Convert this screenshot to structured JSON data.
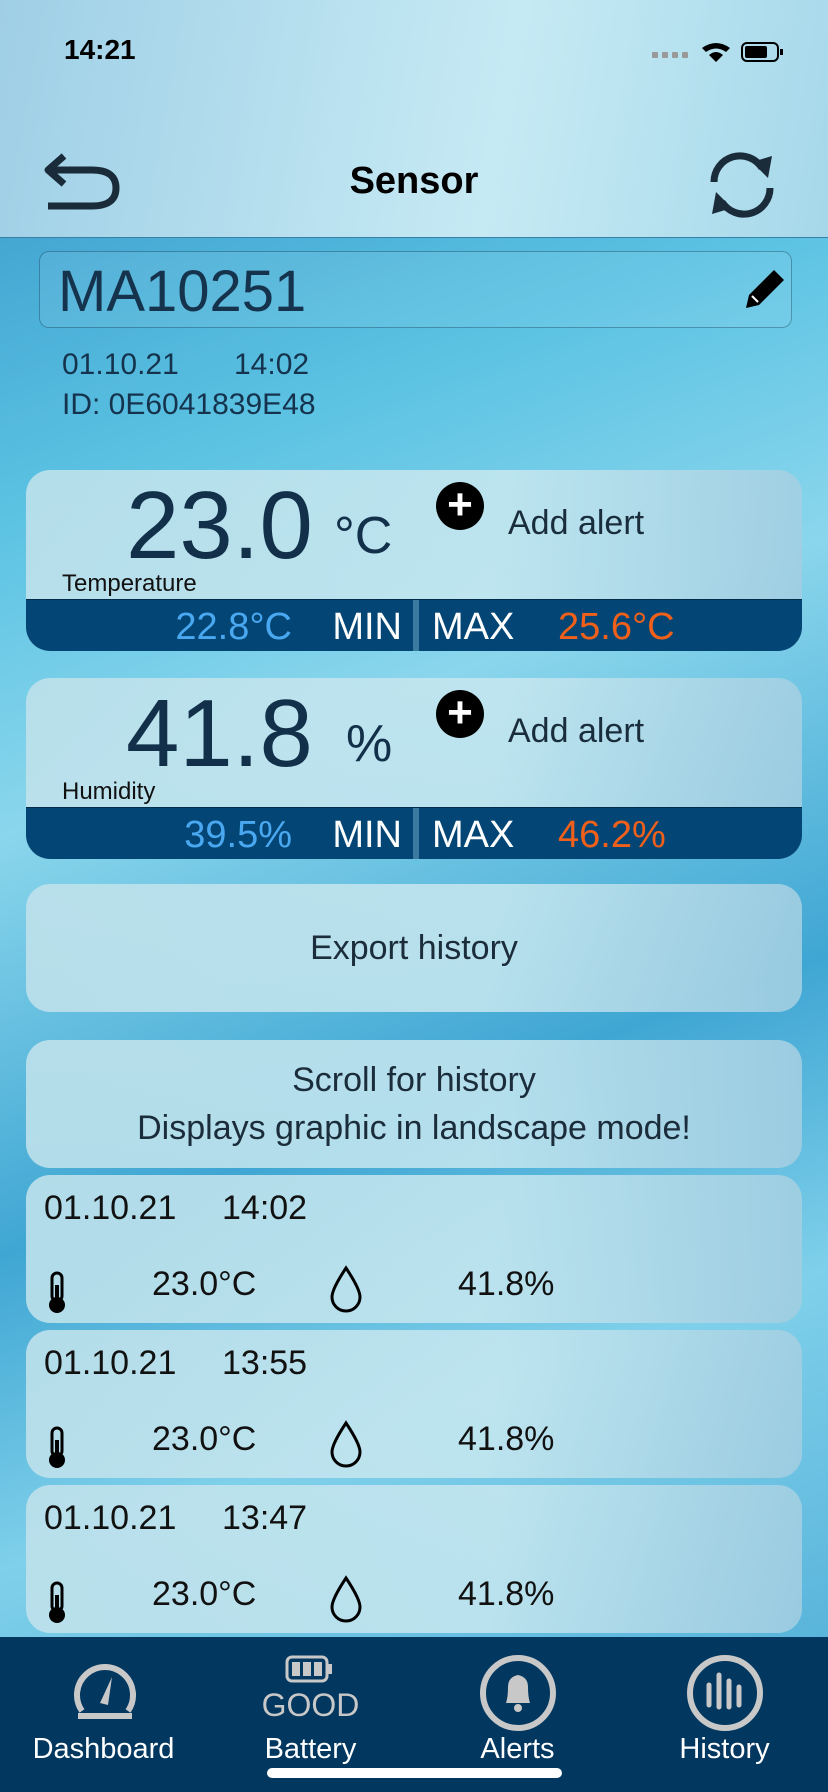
{
  "status_bar": {
    "time": "14:21"
  },
  "header": {
    "title": "Sensor",
    "back_icon": "back-arrow-icon",
    "refresh_icon": "refresh-icon"
  },
  "sensor": {
    "name": "MA10251",
    "date": "01.10.21",
    "time": "14:02",
    "id": "ID: 0E6041839E48"
  },
  "temperature": {
    "value": "23.0",
    "unit": "°C",
    "label": "Temperature",
    "add_alert": "Add alert",
    "min_value": "22.8°C",
    "min_label": "MIN",
    "max_label": "MAX",
    "max_value": "25.6°C"
  },
  "humidity": {
    "value": "41.8",
    "unit": "%",
    "label": "Humidity",
    "add_alert": "Add alert",
    "min_value": "39.5%",
    "min_label": "MIN",
    "max_label": "MAX",
    "max_value": "46.2%"
  },
  "export": {
    "label": "Export history"
  },
  "scroll_info": {
    "line1": "Scroll for history",
    "line2": "Displays graphic in landscape mode!"
  },
  "history": [
    {
      "date": "01.10.21",
      "time": "14:02",
      "temp": "23.0°C",
      "hum": "41.8%"
    },
    {
      "date": "01.10.21",
      "time": "13:55",
      "temp": "23.0°C",
      "hum": "41.8%"
    },
    {
      "date": "01.10.21",
      "time": "13:47",
      "temp": "23.0°C",
      "hum": "41.8%"
    }
  ],
  "tabs": [
    {
      "label": "Dashboard"
    },
    {
      "label": "Battery",
      "status": "GOOD"
    },
    {
      "label": "Alerts"
    },
    {
      "label": "History"
    }
  ],
  "colors": {
    "min": "#4aa8f0",
    "max": "#f0601a",
    "bar": "#034675",
    "tabbar": "#02375f"
  }
}
